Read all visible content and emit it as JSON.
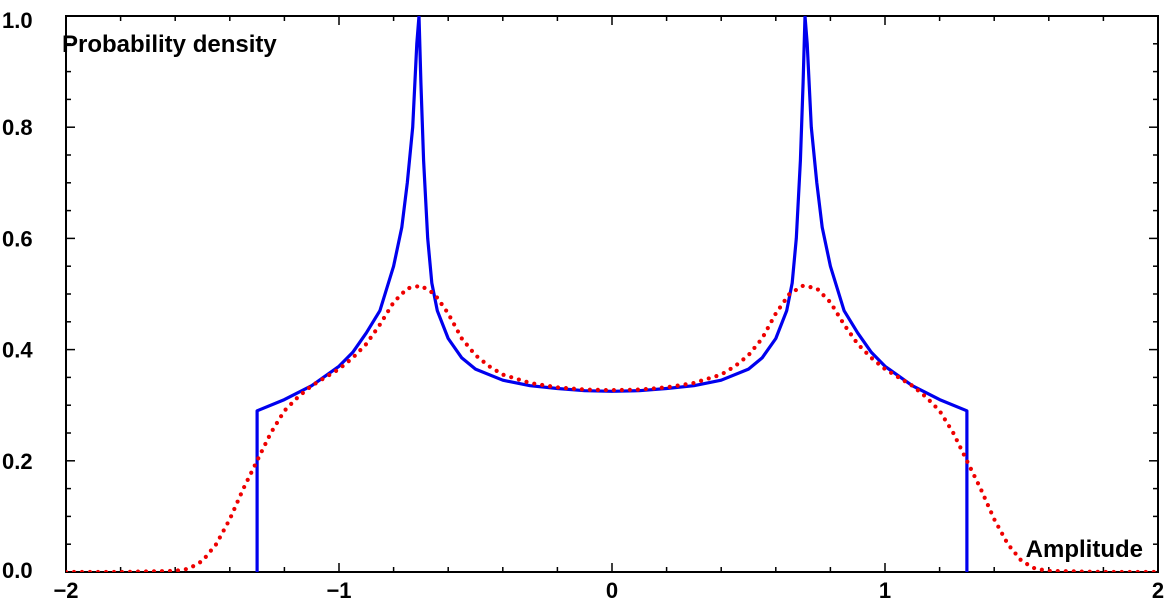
{
  "chart_data": {
    "type": "line",
    "title": "",
    "xlabel": "Amplitude",
    "ylabel": "Probability density",
    "xlim": [
      -2.0,
      2.0
    ],
    "ylim": [
      0.0,
      1.0
    ],
    "grid": false,
    "x_ticks": [
      {
        "value": -2,
        "label": "−2"
      },
      {
        "value": -1,
        "label": "−1"
      },
      {
        "value": 0,
        "label": "0"
      },
      {
        "value": 1,
        "label": "1"
      },
      {
        "value": 2,
        "label": "2"
      }
    ],
    "y_ticks": [
      {
        "value": 0.0,
        "label": "0.0"
      },
      {
        "value": 0.2,
        "label": "0.2"
      },
      {
        "value": 0.4,
        "label": "0.4"
      },
      {
        "value": 0.6,
        "label": "0.6"
      },
      {
        "value": 0.8,
        "label": "0.8"
      },
      {
        "value": 1.0,
        "label": "1.0"
      }
    ],
    "series": [
      {
        "color": "#0000ee",
        "style": "solid",
        "x": [
          -1.3,
          -1.3,
          -1.2,
          -1.1,
          -1.0,
          -0.95,
          -0.9,
          -0.85,
          -0.8,
          -0.77,
          -0.75,
          -0.73,
          -0.715,
          -0.707,
          -0.707,
          -0.7,
          -0.69,
          -0.675,
          -0.66,
          -0.64,
          -0.6,
          -0.55,
          -0.5,
          -0.4,
          -0.3,
          -0.2,
          -0.1,
          0.0,
          0.1,
          0.2,
          0.3,
          0.4,
          0.5,
          0.55,
          0.6,
          0.64,
          0.66,
          0.675,
          0.69,
          0.7,
          0.707,
          0.707,
          0.715,
          0.73,
          0.75,
          0.77,
          0.8,
          0.85,
          0.9,
          0.95,
          1.0,
          1.1,
          1.2,
          1.3,
          1.3
        ],
        "y": [
          0.0,
          0.29,
          0.31,
          0.335,
          0.37,
          0.395,
          0.43,
          0.47,
          0.55,
          0.62,
          0.7,
          0.8,
          0.95,
          1.0,
          1.0,
          0.88,
          0.74,
          0.6,
          0.52,
          0.47,
          0.42,
          0.385,
          0.365,
          0.345,
          0.335,
          0.33,
          0.326,
          0.325,
          0.326,
          0.33,
          0.335,
          0.345,
          0.365,
          0.385,
          0.42,
          0.47,
          0.52,
          0.6,
          0.74,
          0.88,
          1.0,
          1.0,
          0.95,
          0.8,
          0.7,
          0.62,
          0.55,
          0.47,
          0.43,
          0.395,
          0.37,
          0.335,
          0.31,
          0.29,
          0.0
        ]
      },
      {
        "color": "#ee0000",
        "style": "dotted",
        "x": [
          -2.0,
          -1.8,
          -1.6,
          -1.55,
          -1.5,
          -1.45,
          -1.4,
          -1.35,
          -1.3,
          -1.25,
          -1.2,
          -1.15,
          -1.1,
          -1.0,
          -0.95,
          -0.9,
          -0.85,
          -0.8,
          -0.75,
          -0.7,
          -0.65,
          -0.6,
          -0.55,
          -0.5,
          -0.45,
          -0.4,
          -0.3,
          -0.2,
          -0.1,
          0.0,
          0.1,
          0.2,
          0.3,
          0.4,
          0.45,
          0.5,
          0.55,
          0.6,
          0.65,
          0.7,
          0.75,
          0.8,
          0.85,
          0.9,
          0.95,
          1.0,
          1.1,
          1.15,
          1.2,
          1.25,
          1.3,
          1.35,
          1.4,
          1.45,
          1.5,
          1.55,
          1.6,
          1.8,
          2.0
        ],
        "y": [
          0.0,
          0.0,
          0.002,
          0.006,
          0.02,
          0.05,
          0.095,
          0.15,
          0.2,
          0.25,
          0.29,
          0.315,
          0.335,
          0.365,
          0.385,
          0.41,
          0.445,
          0.485,
          0.51,
          0.515,
          0.5,
          0.465,
          0.42,
          0.39,
          0.37,
          0.355,
          0.34,
          0.332,
          0.328,
          0.327,
          0.328,
          0.332,
          0.34,
          0.355,
          0.37,
          0.39,
          0.42,
          0.465,
          0.5,
          0.515,
          0.51,
          0.485,
          0.445,
          0.41,
          0.385,
          0.365,
          0.335,
          0.315,
          0.29,
          0.25,
          0.2,
          0.15,
          0.095,
          0.05,
          0.02,
          0.006,
          0.002,
          0.0,
          0.0
        ]
      }
    ]
  }
}
